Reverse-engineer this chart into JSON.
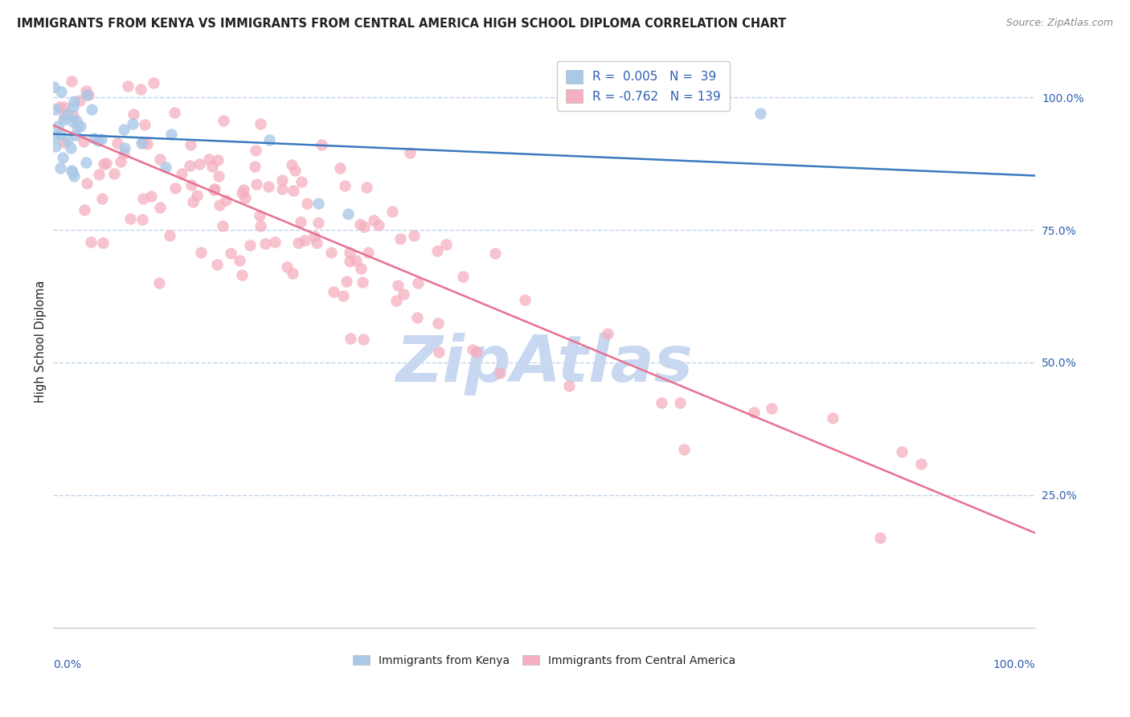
{
  "title": "IMMIGRANTS FROM KENYA VS IMMIGRANTS FROM CENTRAL AMERICA HIGH SCHOOL DIPLOMA CORRELATION CHART",
  "source": "Source: ZipAtlas.com",
  "ylabel": "High School Diploma",
  "legend_bottom_kenya": "Immigrants from Kenya",
  "legend_bottom_ca": "Immigrants from Central America",
  "kenya_R": 0.005,
  "kenya_N": 39,
  "ca_R": -0.762,
  "ca_N": 139,
  "kenya_color": "#aac8e8",
  "ca_color": "#f5afc0",
  "kenya_line_color": "#3a7abf",
  "ca_line_color": "#e87090",
  "title_color": "#222222",
  "source_color": "#888888",
  "grid_color": "#c0d4e8",
  "axis_label_color": "#3060b0",
  "watermark_color": "#c8d8f0",
  "background_color": "#ffffff",
  "xlim": [
    0.0,
    1.0
  ],
  "ylim": [
    0.0,
    1.08
  ],
  "kenya_line_y0": 0.935,
  "kenya_line_y1": 0.935,
  "ca_line_y0": 0.93,
  "ca_line_y1": 0.215
}
